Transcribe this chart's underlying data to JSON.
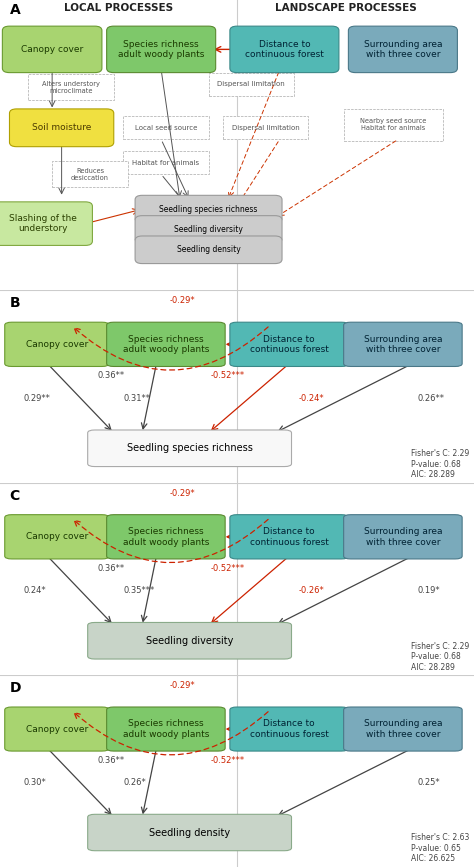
{
  "fig_width": 4.74,
  "fig_height": 8.67,
  "bg_color": "#ffffff",
  "node_colors": {
    "canopy": "#a8d470",
    "species": "#7ec86a",
    "distance": "#52b8b4",
    "surrounding": "#7aaabb"
  },
  "node_text_colors": {
    "canopy": "#1a3a00",
    "species": "#1a3a00",
    "distance": "#002233",
    "surrounding": "#002233"
  },
  "node_edge_colors": {
    "canopy": "#6a9a30",
    "species": "#5a8a30",
    "distance": "#3a8888",
    "surrounding": "#4a7888"
  },
  "node_labels": {
    "canopy": "Canopy cover",
    "species": "Species richness\nadult woody plants",
    "distance": "Distance to\ncontinuous forest",
    "surrounding": "Surrounding area\nwith three cover"
  },
  "panels_BCD": [
    {
      "label": "B",
      "outcome": "Seedling species richness",
      "outcome_color": "#f8f8f8",
      "outcome_edge": "#aaaaaa",
      "stats": "Fisher's C: 2.29\nP-value: 0.68\nAIC: 28.289",
      "top_arrow_label": "-0.29*",
      "label_canopy_species": "0.36**",
      "label_distance_species": "-0.52***",
      "label_canopy_outcome": "0.29**",
      "label_species_outcome": "0.31**",
      "label_distance_outcome": "-0.24*",
      "label_surrounding_outcome": "0.26**",
      "has_distance_outcome": true
    },
    {
      "label": "C",
      "outcome": "Seedling diversity",
      "outcome_color": "#c8d4c8",
      "outcome_edge": "#8aaa8a",
      "stats": "Fisher's C: 2.29\nP-value: 0.68\nAIC: 28.289",
      "top_arrow_label": "-0.29*",
      "label_canopy_species": "0.36**",
      "label_distance_species": "-0.52***",
      "label_canopy_outcome": "0.24*",
      "label_species_outcome": "0.35***",
      "label_distance_outcome": "-0.26*",
      "label_surrounding_outcome": "0.19*",
      "has_distance_outcome": true
    },
    {
      "label": "D",
      "outcome": "Seedling density",
      "outcome_color": "#c8d4c8",
      "outcome_edge": "#8aaa8a",
      "stats": "Fisher's C: 2.63\nP-value: 0.65\nAIC: 26.625",
      "top_arrow_label": "-0.29*",
      "label_canopy_species": "0.36**",
      "label_distance_species": "-0.52***",
      "label_canopy_outcome": "0.30*",
      "label_species_outcome": "0.26*",
      "label_distance_outcome": "",
      "label_surrounding_outcome": "0.25*",
      "has_distance_outcome": false
    }
  ]
}
